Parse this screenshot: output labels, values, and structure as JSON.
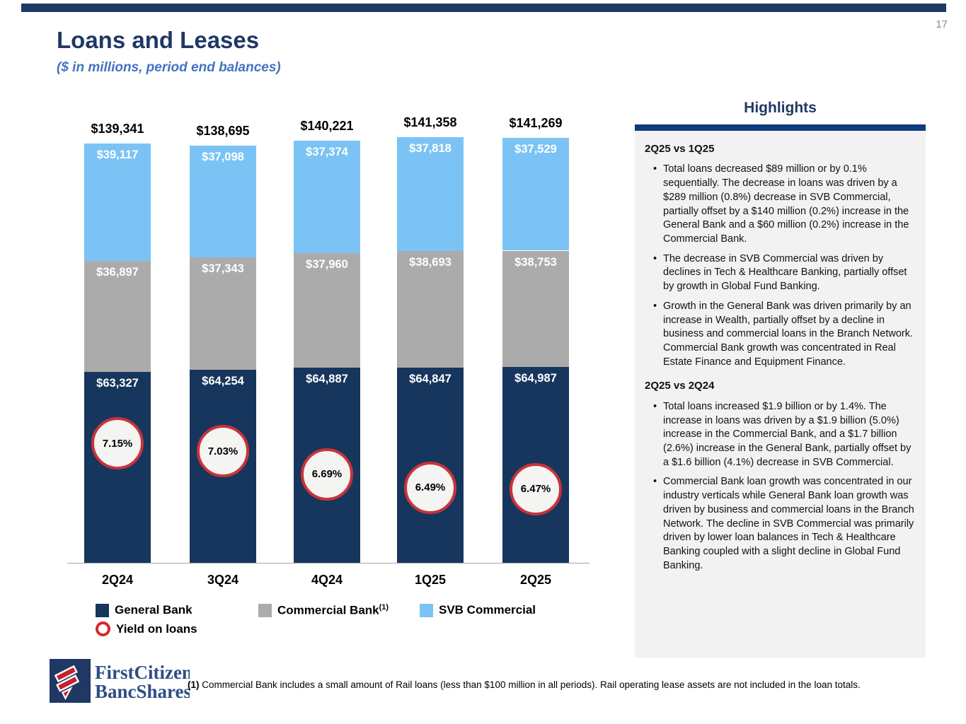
{
  "page": {
    "number": "17"
  },
  "header": {
    "title": "Loans and Leases",
    "subtitle": "($ in millions, period end balances)"
  },
  "chart_data": {
    "type": "bar",
    "stacked": true,
    "title": "Loans and Leases ($ in millions, period end balances)",
    "categories": [
      "2Q24",
      "3Q24",
      "4Q24",
      "1Q25",
      "2Q25"
    ],
    "series": [
      {
        "name": "General Bank",
        "color": "#17365d",
        "values": [
          63327,
          64254,
          64887,
          64847,
          64987
        ]
      },
      {
        "name": "Commercial Bank",
        "color": "#ababab",
        "values": [
          36897,
          37343,
          37960,
          38693,
          38753
        ]
      },
      {
        "name": "SVB Commercial",
        "color": "#7cc3f5",
        "values": [
          39117,
          37098,
          37374,
          37818,
          37529
        ]
      }
    ],
    "totals": [
      139341,
      138695,
      140221,
      141358,
      141269
    ],
    "total_labels": [
      "$139,341",
      "$138,695",
      "$140,221",
      "$141,358",
      "$141,269"
    ],
    "yield_series": {
      "name": "Yield on loans",
      "values": [
        7.15,
        7.03,
        6.69,
        6.49,
        6.47
      ],
      "labels": [
        "7.15%",
        "7.03%",
        "6.69%",
        "6.49%",
        "6.47%"
      ],
      "marker_fill": "#f4f4f2",
      "marker_border": "#c9333a"
    },
    "legend_position": "bottom",
    "grid": false
  },
  "legend": {
    "items": [
      {
        "label": "General Bank",
        "type": "square",
        "color": "#17365d",
        "superscript": ""
      },
      {
        "label": "Commercial Bank",
        "type": "square",
        "color": "#ababab",
        "superscript": "(1)"
      },
      {
        "label": "SVB Commercial",
        "type": "square",
        "color": "#7cc3f5",
        "superscript": ""
      },
      {
        "label": "Yield on loans",
        "type": "ring",
        "color": "#d8262c",
        "superscript": ""
      }
    ]
  },
  "highlights": {
    "title": "Highlights",
    "accent_color": "#0d3b7c",
    "panel_color": "#f2f2f2",
    "sections": [
      {
        "heading": "2Q25 vs 1Q25",
        "bullets": [
          "Total loans decreased $89 million or by 0.1% sequentially. The decrease in loans was driven by a $289 million (0.8%) decrease in SVB Commercial, partially offset by a $140 million (0.2%) increase in the General Bank and a $60 million (0.2%) increase in the Commercial Bank.",
          "The decrease in SVB Commercial was driven by declines in Tech & Healthcare Banking, partially offset by growth in Global Fund Banking.",
          "Growth in the General Bank was driven primarily by an increase in Wealth, partially offset by a decline in business and commercial loans in the Branch Network. Commercial Bank growth was concentrated in Real Estate Finance and Equipment Finance."
        ]
      },
      {
        "heading": "2Q25 vs 2Q24",
        "bullets": [
          "Total loans increased $1.9 billion or by 1.4%. The increase in loans was driven by a $1.9 billion (5.0%) increase in the Commercial Bank, and a $1.7 billion (2.6%) increase in the General Bank, partially offset by a $1.6 billion (4.1%) decrease in SVB Commercial.",
          "Commercial Bank loan growth was concentrated in our industry verticals while General Bank loan growth was driven by business and commercial loans in the Branch Network. The decline in SVB Commercial was primarily driven by lower loan balances in Tech & Healthcare Banking coupled with a slight decline in Global Fund Banking."
        ]
      }
    ]
  },
  "footer": {
    "logo_line1": "FirstCitizens",
    "logo_line2": "BancShares",
    "logo_registered": "®",
    "footnote_marker": "(1)",
    "footnote_text": " Commercial Bank includes a small amount of Rail loans (less than $100 million in all periods).  Rail operating lease assets are not included in the loan totals."
  }
}
